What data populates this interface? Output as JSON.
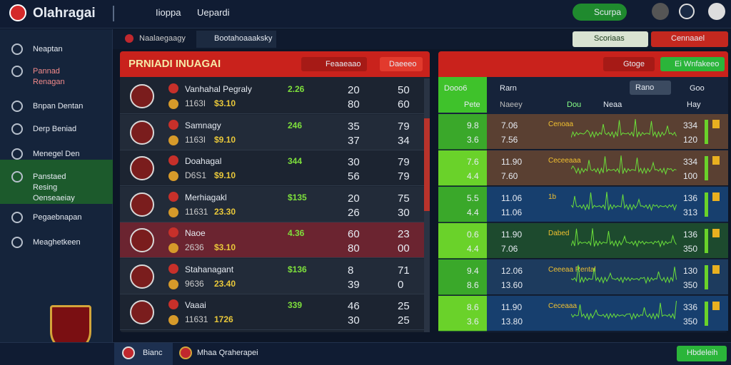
{
  "topbar": {
    "logo": "Olahragai",
    "nav": [
      "Iioppa",
      "Uepardi"
    ],
    "action": "Scurpa"
  },
  "subbar": {
    "tabs": [
      "Naalaegaagy",
      "Bootahoaaaksky"
    ],
    "right": [
      "Scoriaas",
      "Cennaael"
    ]
  },
  "sidebar": {
    "items": [
      "Neaptan",
      "Pannad Renagan",
      "Bnpan Dentan",
      "Derp Beniad",
      "Menegel Den",
      "Panstaed Resing Oenseaeiay",
      "Pegaebnapan",
      "Meaghetkeen"
    ]
  },
  "left_panel": {
    "title": "PRNIADI INUAGAI",
    "buttons": [
      "Feaaeaao",
      "Daeeeo"
    ],
    "rows": [
      {
        "name": "Vanhahal Pegraly",
        "code": "1163I",
        "odds": [
          "2.26",
          "$3.10"
        ],
        "a": [
          "20",
          "80"
        ],
        "b": [
          "50",
          "60"
        ]
      },
      {
        "name": "Samnagy",
        "code": "1163I",
        "odds": [
          "246",
          "$9.10"
        ],
        "a": [
          "35",
          "37"
        ],
        "b": [
          "79",
          "34"
        ]
      },
      {
        "name": "Doahagal",
        "code": "D6S1",
        "odds": [
          "344",
          "$9.10"
        ],
        "a": [
          "30",
          "56"
        ],
        "b": [
          "79",
          "79"
        ]
      },
      {
        "name": "Merhiagakl",
        "code": "11631",
        "odds": [
          "$135",
          "23.30"
        ],
        "a": [
          "20",
          "26"
        ],
        "b": [
          "75",
          "30"
        ]
      },
      {
        "name": "Naoe",
        "code": "2636",
        "odds": [
          "4.36",
          "$3.10"
        ],
        "a": [
          "60",
          "80"
        ],
        "b": [
          "23",
          "00"
        ]
      },
      {
        "name": "Stahanagant",
        "code": "9636",
        "odds": [
          "$136",
          "23.40"
        ],
        "a": [
          "8",
          "39"
        ],
        "b": [
          "71",
          "0"
        ]
      },
      {
        "name": "Vaaai",
        "code": "11631",
        "odds": [
          "339",
          "1726"
        ],
        "a": [
          "46",
          "30"
        ],
        "b": [
          "25",
          "25"
        ]
      }
    ]
  },
  "right_panel": {
    "buttons": [
      "Gtoge",
      "Ei Wnfakeeo"
    ],
    "head": [
      "Dooo6",
      "Pete",
      "Rarn",
      "Naeey",
      "Dou",
      "Neaa",
      "Goo",
      "Hay"
    ],
    "select": "Rano",
    "rows": [
      {
        "g": [
          "9.8",
          "3.6"
        ],
        "m": [
          "7.06",
          "7.56"
        ],
        "label": "Cenoaa",
        "r": [
          "334",
          "120"
        ]
      },
      {
        "g": [
          "7.6",
          "4.4"
        ],
        "m": [
          "11.90",
          "7.60"
        ],
        "label": "Ceceeaaa",
        "r": [
          "334",
          "100"
        ]
      },
      {
        "g": [
          "5.5",
          "4.4"
        ],
        "m": [
          "11.06",
          "11.06"
        ],
        "label": "1b",
        "r": [
          "136",
          "313"
        ]
      },
      {
        "g": [
          "0.6",
          "4.4"
        ],
        "m": [
          "11.90",
          "7.06"
        ],
        "label": "Dabed",
        "r": [
          "136",
          "350"
        ]
      },
      {
        "g": [
          "9.4",
          "8.6"
        ],
        "m": [
          "12.06",
          "13.60"
        ],
        "label": "Ceeeaa Rental",
        "r": [
          "130",
          "350"
        ]
      },
      {
        "g": [
          "8.6",
          "3.6"
        ],
        "m": [
          "11.90",
          "13.80"
        ],
        "label": "Ceceaaa",
        "r": [
          "336",
          "350"
        ]
      }
    ]
  },
  "footer": {
    "items": [
      "Bianc",
      "Mhaa Qraherapei"
    ],
    "button": "Hbdeleih"
  }
}
